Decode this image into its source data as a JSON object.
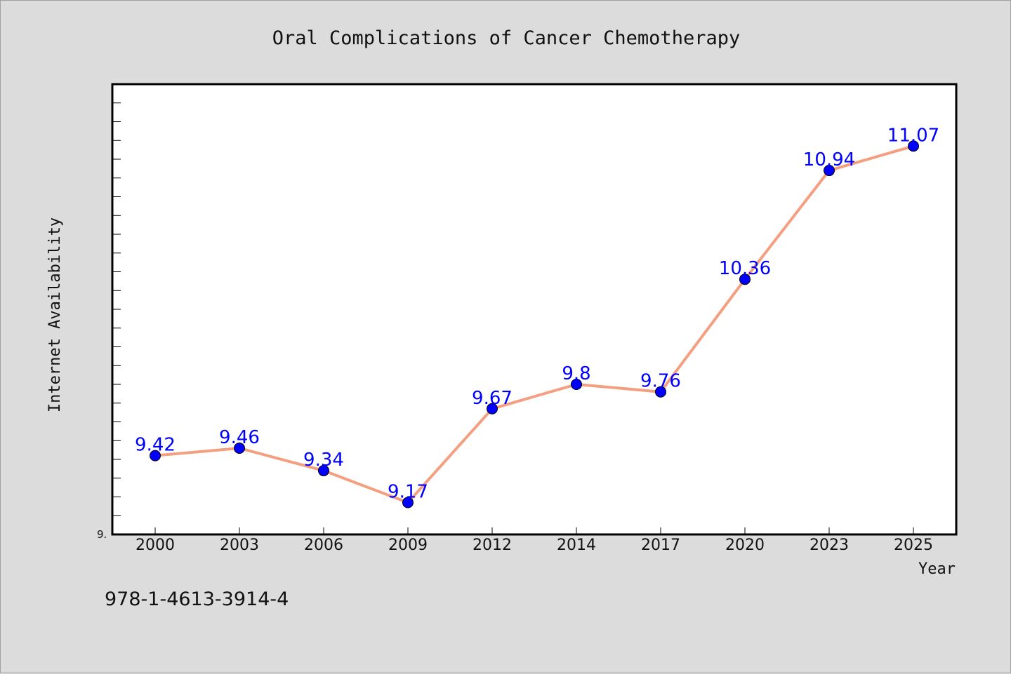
{
  "footer_text": "978-1-4613-3914-4",
  "chart_data": {
    "type": "line",
    "title": "Oral Complications of Cancer Chemotherapy",
    "xlabel": "Year",
    "ylabel": "Internet Availability",
    "categories": [
      "2000",
      "2003",
      "2006",
      "2009",
      "2012",
      "2014",
      "2017",
      "2020",
      "2023",
      "2025"
    ],
    "series": [
      {
        "values": [
          9.42,
          9.46,
          9.34,
          9.17,
          9.67,
          9.8,
          9.76,
          10.36,
          10.94,
          11.07
        ]
      }
    ],
    "data_labels": [
      "9.42",
      "9.46",
      "9.34",
      "9.17",
      "9.67",
      "9.8",
      "9.76",
      "10.36",
      "10.94",
      "11.07"
    ],
    "ytick_labels": [
      "9."
    ],
    "ylim": [
      9.0,
      11.4
    ],
    "grid": false,
    "line_color": "#f4a080",
    "marker_color": "#0000ff",
    "label_color": "#0000ff"
  }
}
